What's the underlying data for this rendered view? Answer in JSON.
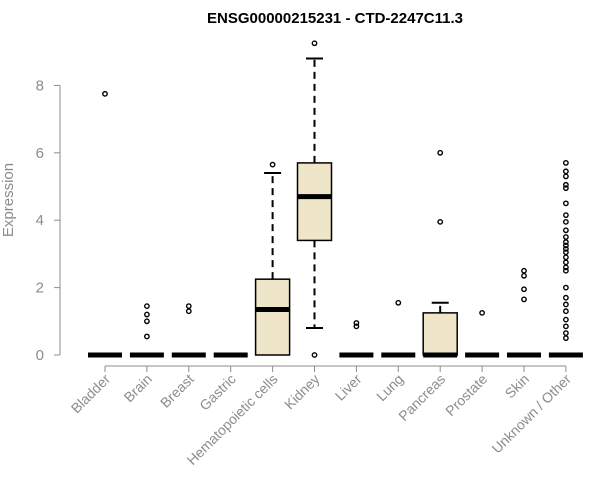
{
  "chart_data": {
    "type": "boxplot",
    "title": "ENSG00000215231 - CTD-2247C11.3",
    "ylabel": "Expression",
    "xlabel": "",
    "ylim": [
      0,
      9.3
    ],
    "yticks": [
      0,
      2,
      4,
      6,
      8
    ],
    "grid": false,
    "colors": {
      "box_fill": "#efe6c9",
      "stroke": "#000000",
      "axis": "#8c8c8c"
    },
    "categories": [
      "Bladder",
      "Brain",
      "Breast",
      "Gastric",
      "Hematopoietic cells",
      "Kidney",
      "Liver",
      "Lung",
      "Pancreas",
      "Prostate",
      "Skin",
      "Unknown / Other"
    ],
    "boxes": [
      {
        "category": "Bladder",
        "q1": 0,
        "median": 0,
        "q3": 0,
        "whisker_low": 0,
        "whisker_high": 0,
        "outliers": [
          7.75
        ]
      },
      {
        "category": "Brain",
        "q1": 0,
        "median": 0,
        "q3": 0,
        "whisker_low": 0,
        "whisker_high": 0,
        "outliers": [
          0.55,
          1.0,
          1.2,
          1.45
        ]
      },
      {
        "category": "Breast",
        "q1": 0,
        "median": 0,
        "q3": 0,
        "whisker_low": 0,
        "whisker_high": 0,
        "outliers": [
          1.3,
          1.45
        ]
      },
      {
        "category": "Gastric",
        "q1": 0,
        "median": 0,
        "q3": 0,
        "whisker_low": 0,
        "whisker_high": 0,
        "outliers": []
      },
      {
        "category": "Hematopoietic cells",
        "q1": 0,
        "median": 1.35,
        "q3": 2.25,
        "whisker_low": 0,
        "whisker_high": 5.4,
        "outliers": [
          5.65
        ]
      },
      {
        "category": "Kidney",
        "q1": 3.4,
        "median": 4.7,
        "q3": 5.7,
        "whisker_low": 0.8,
        "whisker_high": 8.8,
        "outliers": [
          0.0,
          9.25
        ]
      },
      {
        "category": "Liver",
        "q1": 0,
        "median": 0,
        "q3": 0,
        "whisker_low": 0,
        "whisker_high": 0,
        "outliers": [
          0.85,
          0.95
        ]
      },
      {
        "category": "Lung",
        "q1": 0,
        "median": 0,
        "q3": 0,
        "whisker_low": 0,
        "whisker_high": 0,
        "outliers": [
          1.55
        ]
      },
      {
        "category": "Pancreas",
        "q1": 0,
        "median": 0,
        "q3": 1.25,
        "whisker_low": 0,
        "whisker_high": 1.55,
        "outliers": [
          3.95,
          6.0
        ]
      },
      {
        "category": "Prostate",
        "q1": 0,
        "median": 0,
        "q3": 0,
        "whisker_low": 0,
        "whisker_high": 0,
        "outliers": [
          1.25
        ]
      },
      {
        "category": "Skin",
        "q1": 0,
        "median": 0,
        "q3": 0,
        "whisker_low": 0,
        "whisker_high": 0,
        "outliers": [
          1.65,
          1.95,
          2.35,
          2.5
        ]
      },
      {
        "category": "Unknown / Other",
        "q1": 0,
        "median": 0,
        "q3": 0,
        "whisker_low": 0,
        "whisker_high": 0,
        "outliers": [
          0.5,
          0.65,
          0.85,
          1.05,
          1.3,
          1.5,
          1.7,
          2.0,
          2.5,
          2.6,
          2.75,
          2.9,
          3.05,
          3.15,
          3.25,
          3.35,
          3.5,
          3.7,
          3.95,
          4.15,
          4.5,
          4.95,
          5.05,
          5.3,
          5.45,
          5.7
        ]
      }
    ]
  }
}
